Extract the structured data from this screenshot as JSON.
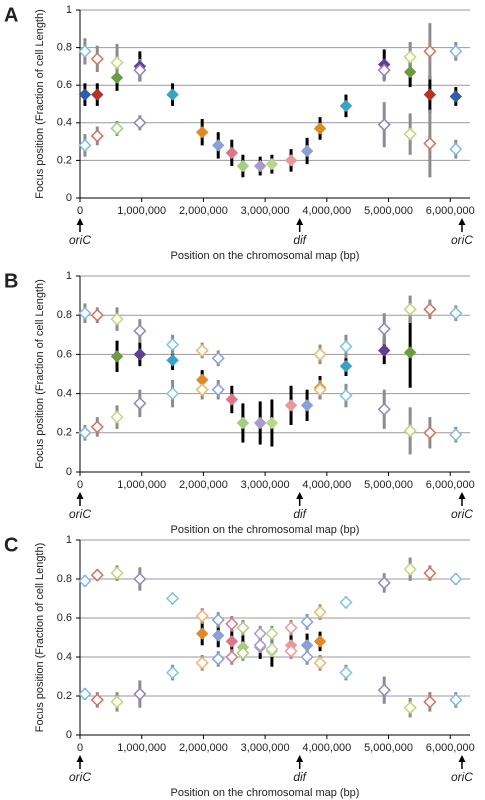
{
  "chart_data": [
    {
      "type": "scatter",
      "label": "A",
      "ylabel": "Focus position (Fraction of cell Length)",
      "xlabel": "Position on the chromosomal map (bp)",
      "xlim": [
        0,
        6320000
      ],
      "ylim": [
        0,
        1
      ],
      "yticks": [
        0,
        0.2,
        0.4,
        0.6,
        0.8,
        1
      ],
      "xticks": [
        0,
        {
          "value": 1000000,
          "label": "1,000,000"
        },
        {
          "value": 2000000,
          "label": "2,000,000"
        },
        {
          "value": 3000000,
          "label": "3,000,000"
        },
        {
          "value": 4000000,
          "label": "4,000,000"
        },
        {
          "value": 5000000,
          "label": "5,000,000"
        },
        {
          "value": 6000000,
          "label": "6,000,000"
        }
      ],
      "grid": true,
      "annotations": [
        {
          "text": "oriC",
          "x": 0
        },
        {
          "text": "dif",
          "x": 3560000
        },
        {
          "text": "oriC",
          "x": 6190000
        }
      ],
      "series": [
        {
          "marker": "filled",
          "error_color": "#000000",
          "x": [
            80000,
            280000,
            600000,
            970000,
            1500000,
            1980000,
            2240000,
            2460000,
            2640000,
            2920000,
            3110000,
            3420000,
            3680000,
            3890000,
            4310000,
            4930000,
            5350000,
            5670000,
            6090000
          ],
          "values": [
            0.55,
            0.55,
            0.64,
            0.7,
            0.55,
            0.35,
            0.28,
            0.24,
            0.17,
            0.17,
            0.18,
            0.2,
            0.25,
            0.37,
            0.49,
            0.71,
            0.67,
            0.55,
            0.54
          ],
          "errors": [
            0.06,
            0.06,
            0.07,
            0.08,
            0.06,
            0.07,
            0.07,
            0.07,
            0.06,
            0.05,
            0.05,
            0.06,
            0.07,
            0.06,
            0.06,
            0.08,
            0.08,
            0.1,
            0.05
          ],
          "colors": [
            "#2f5da8",
            "#b3332b",
            "#6e9b3f",
            "#5e3f92",
            "#3aa3c4",
            "#e08a26",
            "#8aa0d6",
            "#e0758a",
            "#a6cc82",
            "#a89bd0",
            "#b9d68e",
            "#e59aa0",
            "#8aa0d6",
            "#e08a26",
            "#3aa3c4",
            "#5e3f92",
            "#6e9b3f",
            "#b3332b",
            "#2f5da8"
          ]
        },
        {
          "marker": "open",
          "error_color": "#8c8c8c",
          "x": [
            80000,
            80000,
            280000,
            280000,
            600000,
            600000,
            970000,
            970000,
            4930000,
            4930000,
            5350000,
            5350000,
            5670000,
            5670000,
            6090000,
            6090000
          ],
          "values": [
            0.78,
            0.28,
            0.74,
            0.33,
            0.72,
            0.37,
            0.68,
            0.4,
            0.68,
            0.39,
            0.75,
            0.34,
            0.78,
            0.29,
            0.78,
            0.26
          ],
          "errors": [
            0.07,
            0.06,
            0.07,
            0.05,
            0.1,
            0.04,
            0.06,
            0.04,
            0.06,
            0.12,
            0.08,
            0.11,
            0.15,
            0.18,
            0.05,
            0.05
          ],
          "colors": [
            "#86b8e3",
            "#86b8e3",
            "#d8705f",
            "#d8705f",
            "#c3d67a",
            "#a6cc82",
            "#9482c2",
            "#9482c2",
            "#9482c2",
            "#9482c2",
            "#c3d67a",
            "#c3d67a",
            "#d8705f",
            "#d8705f",
            "#86b8e3",
            "#86b8e3"
          ]
        }
      ]
    },
    {
      "type": "scatter",
      "label": "B",
      "ylabel": "Focus position (Fraction of cell Length)",
      "xlabel": "Position on the chromosomal map (bp)",
      "xlim": [
        0,
        6320000
      ],
      "ylim": [
        0,
        1
      ],
      "yticks": [
        0,
        0.2,
        0.4,
        0.6,
        0.8,
        1
      ],
      "xticks": [
        0,
        {
          "value": 1000000,
          "label": "1,000,000"
        },
        {
          "value": 2000000,
          "label": "2,000,000"
        },
        {
          "value": 3000000,
          "label": "3,000,000"
        },
        {
          "value": 4000000,
          "label": "4,000,000"
        },
        {
          "value": 5000000,
          "label": "5,000,000"
        },
        {
          "value": 6000000,
          "label": "6,000,000"
        }
      ],
      "grid": true,
      "annotations": [
        {
          "text": "oriC",
          "x": 0
        },
        {
          "text": "dif",
          "x": 3560000
        },
        {
          "text": "oriC",
          "x": 6190000
        }
      ],
      "series": [
        {
          "marker": "filled",
          "error_color": "#000000",
          "x": [
            600000,
            970000,
            1500000,
            1980000,
            2460000,
            2640000,
            2920000,
            3110000,
            3420000,
            3680000,
            3890000,
            4310000,
            4930000,
            5350000
          ],
          "values": [
            0.59,
            0.6,
            0.57,
            0.47,
            0.37,
            0.25,
            0.25,
            0.25,
            0.34,
            0.34,
            0.43,
            0.54,
            0.62,
            0.61
          ],
          "errors": [
            0.08,
            0.06,
            0.05,
            0.05,
            0.07,
            0.1,
            0.11,
            0.12,
            0.1,
            0.08,
            0.06,
            0.05,
            0.07,
            0.18
          ],
          "colors": [
            "#6e9b3f",
            "#5e3f92",
            "#3aa3c4",
            "#e08a26",
            "#e0758a",
            "#a6cc82",
            "#a89bd0",
            "#b9d68e",
            "#e59aa0",
            "#8aa0d6",
            "#e08a26",
            "#3aa3c4",
            "#5e3f92",
            "#6e9b3f"
          ]
        },
        {
          "marker": "open",
          "error_color": "#8c8c8c",
          "x": [
            80000,
            80000,
            280000,
            280000,
            600000,
            600000,
            970000,
            970000,
            1500000,
            1500000,
            1980000,
            1980000,
            2240000,
            2240000,
            3890000,
            3890000,
            4310000,
            4310000,
            4930000,
            4930000,
            5350000,
            5350000,
            5670000,
            5670000,
            6090000,
            6090000
          ],
          "values": [
            0.81,
            0.2,
            0.8,
            0.23,
            0.78,
            0.28,
            0.72,
            0.35,
            0.65,
            0.4,
            0.62,
            0.42,
            0.58,
            0.42,
            0.6,
            0.42,
            0.64,
            0.39,
            0.73,
            0.32,
            0.83,
            0.21,
            0.83,
            0.2,
            0.81,
            0.19
          ],
          "errors": [
            0.05,
            0.04,
            0.04,
            0.05,
            0.06,
            0.06,
            0.06,
            0.07,
            0.05,
            0.07,
            0.04,
            0.05,
            0.04,
            0.05,
            0.05,
            0.05,
            0.06,
            0.06,
            0.08,
            0.1,
            0.07,
            0.12,
            0.05,
            0.08,
            0.04,
            0.04
          ],
          "colors": [
            "#86b8e3",
            "#86b8e3",
            "#d8705f",
            "#d8705f",
            "#c3d67a",
            "#c3d67a",
            "#9482c2",
            "#9482c2",
            "#7ec6dd",
            "#7ec6dd",
            "#f0b670",
            "#f0b670",
            "#8aa0d6",
            "#8aa0d6",
            "#f0b670",
            "#f0b670",
            "#7ec6dd",
            "#7ec6dd",
            "#9482c2",
            "#9482c2",
            "#c3d67a",
            "#c3d67a",
            "#d8705f",
            "#d8705f",
            "#86b8e3",
            "#86b8e3"
          ]
        }
      ]
    },
    {
      "type": "scatter",
      "label": "C",
      "ylabel": "Focus position (Fraction of cell Length)",
      "xlabel": "Position on the chromosomal map (bp)",
      "xlim": [
        0,
        6320000
      ],
      "ylim": [
        0,
        1
      ],
      "yticks": [
        0,
        0.2,
        0.4,
        0.6,
        0.8,
        1
      ],
      "xticks": [
        0,
        {
          "value": 1000000,
          "label": "1,000,000"
        },
        {
          "value": 2000000,
          "label": "2,000,000"
        },
        {
          "value": 3000000,
          "label": "3,000,000"
        },
        {
          "value": 4000000,
          "label": "4,000,000"
        },
        {
          "value": 5000000,
          "label": "5,000,000"
        },
        {
          "value": 6000000,
          "label": "6,000,000"
        }
      ],
      "grid": true,
      "annotations": [
        {
          "text": "oriC",
          "x": 0
        },
        {
          "text": "dif",
          "x": 3560000
        },
        {
          "text": "oriC",
          "x": 6190000
        }
      ],
      "series": [
        {
          "marker": "filled",
          "error_color": "#000000",
          "x": [
            1980000,
            2240000,
            2460000,
            2640000,
            2920000,
            3110000,
            3420000,
            3680000,
            3890000
          ],
          "values": [
            0.52,
            0.51,
            0.48,
            0.45,
            0.45,
            0.43,
            0.46,
            0.46,
            0.48
          ],
          "errors": [
            0.06,
            0.06,
            0.06,
            0.06,
            0.06,
            0.08,
            0.06,
            0.06,
            0.05
          ],
          "colors": [
            "#e08a26",
            "#8aa0d6",
            "#e0758a",
            "#a6cc82",
            "#a89bd0",
            "#b9d68e",
            "#e59aa0",
            "#8aa0d6",
            "#e08a26"
          ]
        },
        {
          "marker": "open",
          "error_color": "#8c8c8c",
          "x": [
            80000,
            80000,
            280000,
            280000,
            600000,
            600000,
            970000,
            970000,
            1500000,
            1500000,
            1980000,
            1980000,
            2240000,
            2240000,
            2460000,
            2460000,
            2640000,
            2640000,
            2920000,
            2920000,
            3110000,
            3110000,
            3420000,
            3420000,
            3680000,
            3680000,
            3890000,
            3890000,
            4310000,
            4310000,
            4930000,
            4930000,
            5350000,
            5350000,
            5670000,
            5670000,
            6090000,
            6090000
          ],
          "values": [
            0.79,
            0.21,
            0.82,
            0.18,
            0.83,
            0.17,
            0.8,
            0.21,
            0.7,
            0.32,
            0.61,
            0.37,
            0.59,
            0.39,
            0.57,
            0.4,
            0.55,
            0.42,
            0.52,
            0.46,
            0.52,
            0.44,
            0.55,
            0.43,
            0.58,
            0.4,
            0.63,
            0.37,
            0.68,
            0.32,
            0.78,
            0.23,
            0.85,
            0.14,
            0.83,
            0.17,
            0.8,
            0.18
          ],
          "errors": [
            0.03,
            0.03,
            0.03,
            0.04,
            0.04,
            0.05,
            0.06,
            0.07,
            0.03,
            0.04,
            0.04,
            0.04,
            0.04,
            0.04,
            0.04,
            0.04,
            0.04,
            0.04,
            0.04,
            0.04,
            0.04,
            0.04,
            0.04,
            0.04,
            0.04,
            0.04,
            0.04,
            0.04,
            0.03,
            0.04,
            0.05,
            0.07,
            0.06,
            0.05,
            0.04,
            0.05,
            0.03,
            0.04
          ],
          "colors": [
            "#86b8e3",
            "#86b8e3",
            "#d8705f",
            "#d8705f",
            "#c3d67a",
            "#c3d67a",
            "#9482c2",
            "#9482c2",
            "#7ec6dd",
            "#7ec6dd",
            "#f0b670",
            "#f0b670",
            "#8aa0d6",
            "#8aa0d6",
            "#e0758a",
            "#e0758a",
            "#a6cc82",
            "#a6cc82",
            "#a89bd0",
            "#a89bd0",
            "#b9d68e",
            "#b9d68e",
            "#e59aa0",
            "#e59aa0",
            "#8aa0d6",
            "#8aa0d6",
            "#f0b670",
            "#f0b670",
            "#7ec6dd",
            "#7ec6dd",
            "#9482c2",
            "#9482c2",
            "#c3d67a",
            "#c3d67a",
            "#d8705f",
            "#d8705f",
            "#86b8e3",
            "#86b8e3"
          ]
        }
      ]
    }
  ]
}
